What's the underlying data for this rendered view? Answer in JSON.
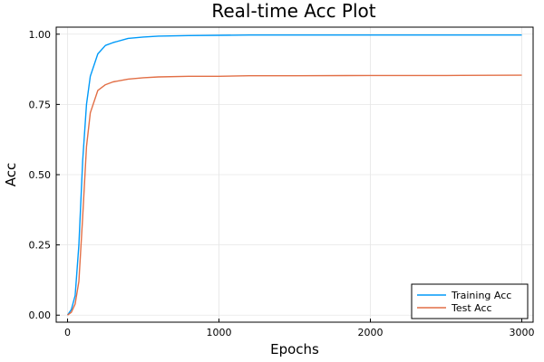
{
  "chart_data": {
    "type": "line",
    "title": "Real-time Acc Plot",
    "xlabel": "Epochs",
    "ylabel": "Acc",
    "xlim": [
      0,
      3000
    ],
    "ylim": [
      0,
      1.0
    ],
    "xticks": [
      0,
      1000,
      2000,
      3000
    ],
    "xtick_labels": [
      "0",
      "1000",
      "2000",
      "3000"
    ],
    "yticks": [
      0,
      0.25,
      0.5,
      0.75,
      1.0
    ],
    "ytick_labels": [
      "0.00",
      "0.25",
      "0.50",
      "0.75",
      "1.00"
    ],
    "grid": true,
    "legend_position": "bottom-right",
    "x": [
      0,
      25,
      50,
      75,
      100,
      125,
      150,
      200,
      250,
      300,
      400,
      500,
      600,
      800,
      1000,
      1200,
      1500,
      2000,
      2500,
      3000
    ],
    "series": [
      {
        "name": "Training Acc",
        "color": "#009af9",
        "values": [
          0.0,
          0.02,
          0.07,
          0.25,
          0.55,
          0.75,
          0.85,
          0.93,
          0.96,
          0.97,
          0.985,
          0.99,
          0.993,
          0.995,
          0.996,
          0.997,
          0.997,
          0.997,
          0.997,
          0.997
        ]
      },
      {
        "name": "Test Acc",
        "color": "#e26f46",
        "values": [
          0.0,
          0.01,
          0.04,
          0.12,
          0.35,
          0.6,
          0.72,
          0.8,
          0.82,
          0.83,
          0.84,
          0.845,
          0.848,
          0.85,
          0.85,
          0.852,
          0.852,
          0.853,
          0.853,
          0.854
        ]
      }
    ]
  }
}
